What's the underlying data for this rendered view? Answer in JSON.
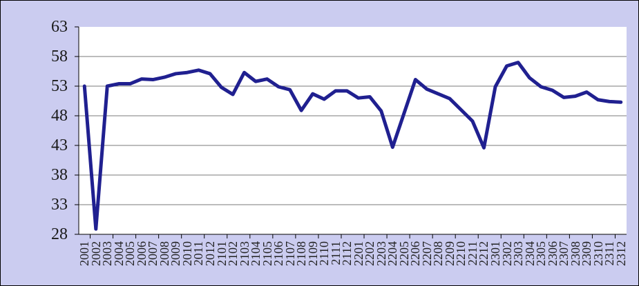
{
  "chart_data": {
    "type": "line",
    "title": "",
    "categories": [
      "2001",
      "2002",
      "2003",
      "2004",
      "2005",
      "2006",
      "2007",
      "2008",
      "2009",
      "2010",
      "2011",
      "2012",
      "2101",
      "2102",
      "2103",
      "2104",
      "2105",
      "2106",
      "2107",
      "2108",
      "2109",
      "2110",
      "2111",
      "2112",
      "2201",
      "2202",
      "2203",
      "2204",
      "2205",
      "2206",
      "2207",
      "2208",
      "2209",
      "2210",
      "2211",
      "2212",
      "2301",
      "2302",
      "2303",
      "2304",
      "2305",
      "2306",
      "2307",
      "2308",
      "2309",
      "2310",
      "2311",
      "2312"
    ],
    "values": [
      53.0,
      28.9,
      53.0,
      53.4,
      53.4,
      54.2,
      54.1,
      54.5,
      55.1,
      55.3,
      55.7,
      55.1,
      52.8,
      51.6,
      55.3,
      53.8,
      54.2,
      52.9,
      52.4,
      48.9,
      51.7,
      50.8,
      52.2,
      52.2,
      51.0,
      51.2,
      48.8,
      42.7,
      48.4,
      54.1,
      52.5,
      51.7,
      50.9,
      49.0,
      47.1,
      42.6,
      52.9,
      56.4,
      57.0,
      54.4,
      52.9,
      52.3,
      51.1,
      51.3,
      52.0,
      50.7,
      50.4,
      50.3
    ],
    "xlabel": "",
    "ylabel": "",
    "ylim": [
      28,
      63
    ],
    "yticks": [
      28,
      33,
      38,
      43,
      48,
      53,
      58,
      63
    ],
    "gridlines": [
      33,
      38,
      43,
      48,
      53,
      58
    ],
    "grid": "horizontal",
    "legend": "none",
    "colors": {
      "line": "#202090",
      "background": "#cbccf0",
      "plot_background": "#ffffff",
      "gridline": "#787878",
      "axis": "#000000",
      "tick_label": "#1a1a1a"
    }
  }
}
